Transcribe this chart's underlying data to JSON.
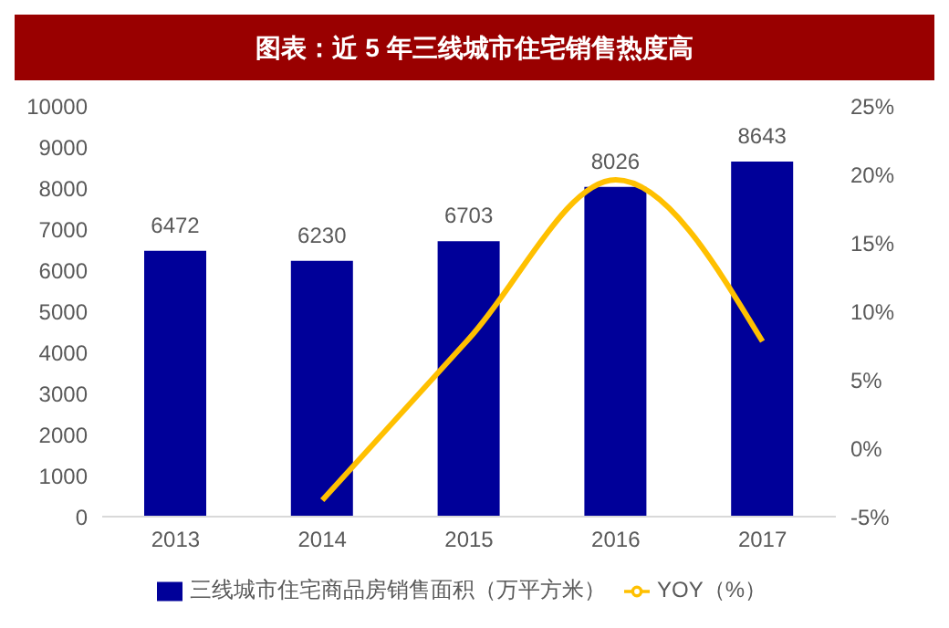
{
  "chart_data": {
    "type": "bar",
    "title": "图表：近 5 年三线城市住宅销售热度高",
    "categories": [
      "2013",
      "2014",
      "2015",
      "2016",
      "2017"
    ],
    "series": [
      {
        "name": "三线城市住宅商品房销售面积（万平方米）",
        "color": "#000099",
        "values": [
          6472,
          6230,
          6703,
          8026,
          8643
        ],
        "value_labels": [
          "6472",
          "6230",
          "6703",
          "8026",
          "8643"
        ]
      },
      {
        "name": "YOY（%）",
        "type": "line",
        "axis": "y2",
        "color": "#ffc000",
        "values": [
          null,
          -3.8,
          8,
          19.6,
          7.8
        ]
      }
    ],
    "ylim": [
      0,
      10000
    ],
    "yticks": [
      0,
      1000,
      2000,
      3000,
      4000,
      5000,
      6000,
      7000,
      8000,
      9000,
      10000
    ],
    "y2lim": [
      -5,
      25
    ],
    "y2ticks": [
      {
        "value": -5,
        "label": "-5%"
      },
      {
        "value": 0,
        "label": "0%"
      },
      {
        "value": 5,
        "label": "5%"
      },
      {
        "value": 10,
        "label": "10%"
      },
      {
        "value": 15,
        "label": "15%"
      },
      {
        "value": 20,
        "label": "20%"
      },
      {
        "value": 25,
        "label": "25%"
      }
    ],
    "grid": false,
    "legend": "bottom"
  }
}
